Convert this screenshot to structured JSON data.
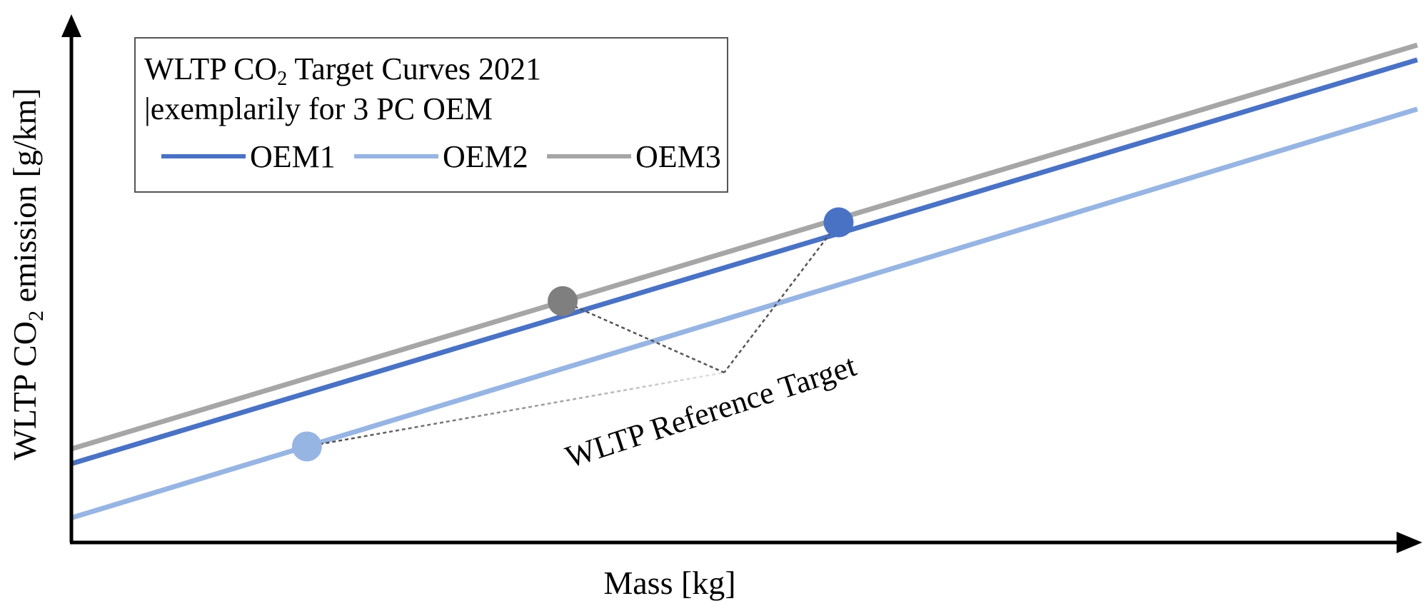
{
  "chart_data": {
    "type": "line",
    "title_line1_prefix": "WLTP CO",
    "title_line1_sub": "2",
    "title_line1_suffix": " Target Curves 2021",
    "title_line2": "|exemplarily for 3 PC OEM",
    "xlabel": "Mass [kg]",
    "ylabel_prefix": "WLTP CO",
    "ylabel_sub": "2",
    "ylabel_suffix": " emission [g/km]",
    "xlim": [
      0,
      100
    ],
    "ylim": [
      0,
      100
    ],
    "series": [
      {
        "name": "OEM1",
        "color": "#4a72c4",
        "x": [
          0,
          100
        ],
        "y": [
          16,
          98
        ]
      },
      {
        "name": "OEM2",
        "color": "#97b5e3",
        "x": [
          0,
          100
        ],
        "y": [
          5,
          88
        ]
      },
      {
        "name": "OEM3",
        "color": "#a6a6a6",
        "x": [
          0,
          100
        ],
        "y": [
          19,
          101
        ]
      }
    ],
    "points": [
      {
        "series": "OEM2",
        "color": "#97b5e3",
        "x": 17.5,
        "y": 19.5
      },
      {
        "series": "OEM3",
        "color": "#7f7f7f",
        "x": 36.5,
        "y": 49
      },
      {
        "series": "OEM1",
        "color": "#4a72c4",
        "x": 57,
        "y": 65
      }
    ],
    "annotation": {
      "text": "WLTP Reference Target",
      "anchor": {
        "x": 48.5,
        "y": 34.5
      }
    }
  }
}
